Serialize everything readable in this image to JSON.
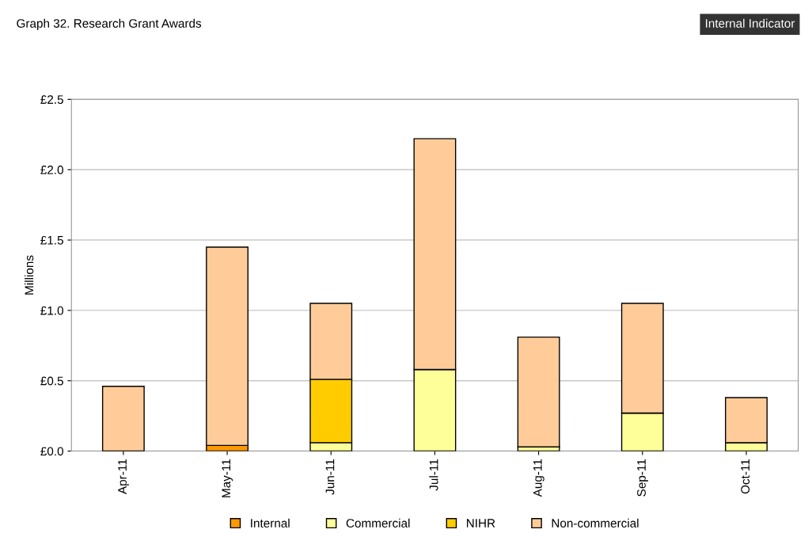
{
  "chart_data": {
    "type": "bar",
    "title": "Graph 32. Research Grant Awards",
    "ylabel": "Millions",
    "annotations": [
      "Internal Indicator"
    ],
    "categories": [
      "Apr-11",
      "May-11",
      "Jun-11",
      "Jul-11",
      "Aug-11",
      "Sep-11",
      "Oct-11"
    ],
    "stacked": true,
    "series": [
      {
        "name": "Internal",
        "color": "#ff9900",
        "values": [
          0,
          0.04,
          0,
          0,
          0,
          0,
          0
        ]
      },
      {
        "name": "Commercial",
        "color": "#ffff99",
        "values": [
          0,
          0,
          0.06,
          0.58,
          0.03,
          0.27,
          0.06
        ]
      },
      {
        "name": "NIHR",
        "color": "#ffcc00",
        "values": [
          0,
          0,
          0.45,
          0,
          0,
          0,
          0
        ]
      },
      {
        "name": "Non-commercial",
        "color": "#ffcc99",
        "values": [
          0.46,
          1.41,
          0.54,
          1.64,
          0.78,
          0.78,
          0.32
        ]
      }
    ],
    "ylim": [
      0,
      2.5
    ],
    "yticks": [
      {
        "value": 0,
        "label": "£0.0"
      },
      {
        "value": 0.5,
        "label": "£0.5"
      },
      {
        "value": 1.0,
        "label": "£1.0"
      },
      {
        "value": 1.5,
        "label": "£1.5"
      },
      {
        "value": 2.0,
        "label": "£2.0"
      },
      {
        "value": 2.5,
        "label": "£2.5"
      }
    ],
    "grid": "y",
    "legend": "bottom"
  }
}
